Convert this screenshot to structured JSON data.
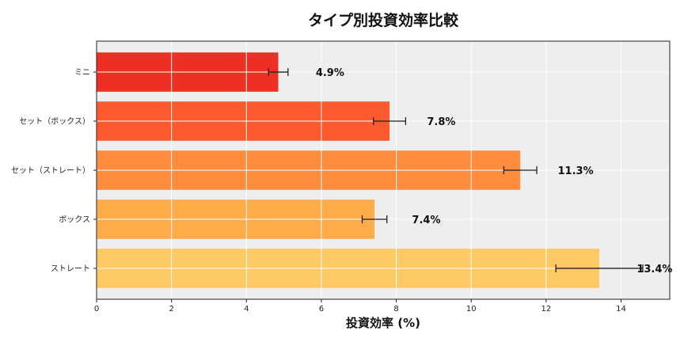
{
  "chart_data": {
    "type": "bar",
    "orientation": "horizontal",
    "title": "タイプ別投資効率比較",
    "xlabel": "投資効率 (%)",
    "ylabel": "",
    "categories": [
      "ミニ",
      "セット（ボックス）",
      "セット（ストレート）",
      "ボックス",
      "ストレート"
    ],
    "values": [
      4.85,
      7.82,
      11.31,
      7.42,
      13.42
    ],
    "errors": [
      0.26,
      0.43,
      0.44,
      0.33,
      1.16
    ],
    "data_labels": [
      "4.9%",
      "7.8%",
      "11.3%",
      "7.4%",
      "13.4%"
    ],
    "colors": [
      "#ee2f23",
      "#fc5a2e",
      "#fd8c3c",
      "#feab4a",
      "#fec965"
    ],
    "xlim": [
      0,
      15.3
    ],
    "xticks": [
      "0",
      "2",
      "4",
      "6",
      "8",
      "10",
      "12",
      "14"
    ],
    "grid": true,
    "background": "#eeeeee"
  }
}
